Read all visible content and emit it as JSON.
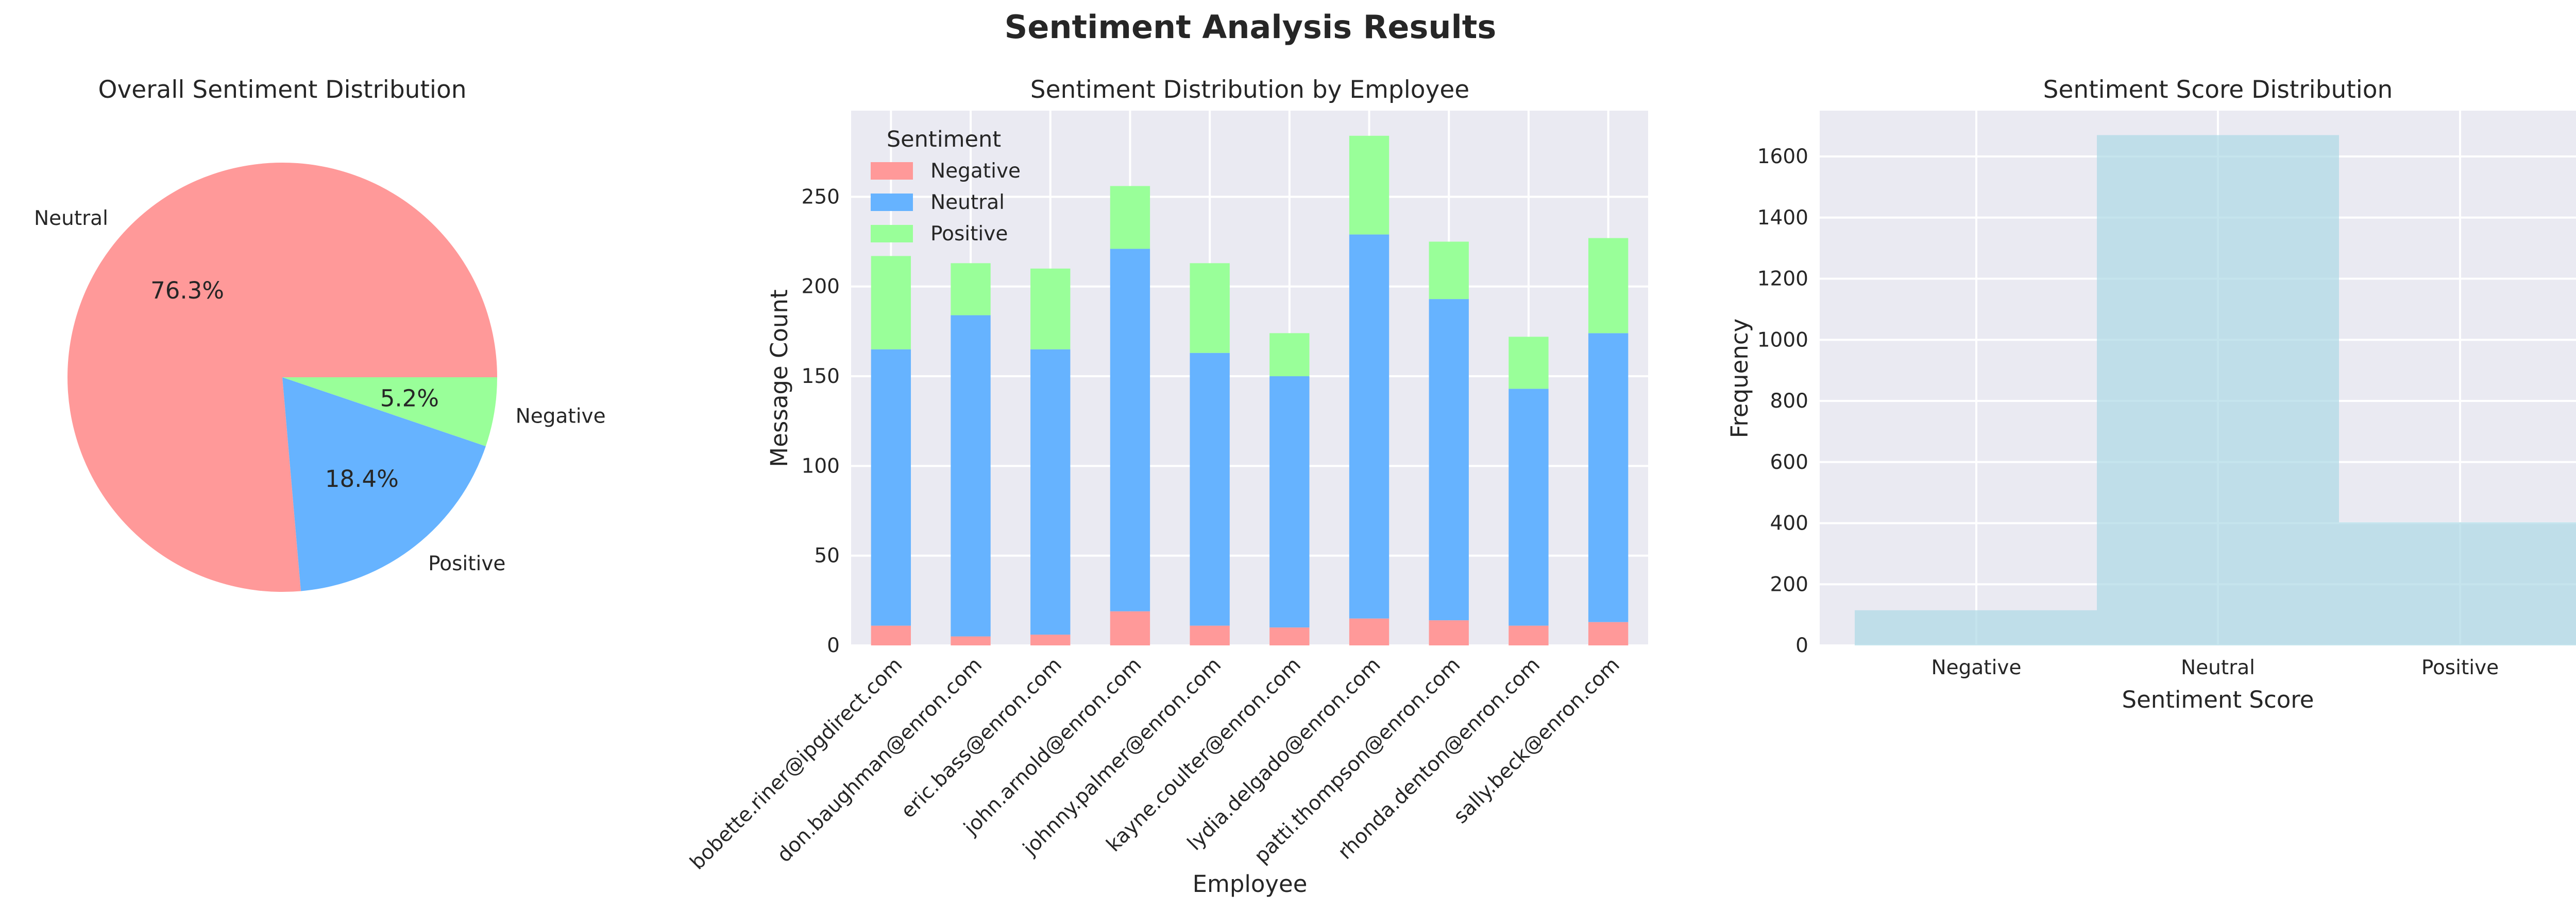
{
  "figure": {
    "suptitle": "Sentiment Analysis Results"
  },
  "colors": {
    "negative": "#ff9999",
    "neutral": "#66b3ff",
    "positive": "#99ff99",
    "histogram": "#add8e6",
    "plot_background": "#eaeaf2",
    "grid": "#ffffff"
  },
  "chart_data": [
    {
      "type": "pie",
      "title": "Overall Sentiment Distribution",
      "labels": [
        "Neutral",
        "Positive",
        "Negative"
      ],
      "values": [
        76.3,
        18.4,
        5.2
      ],
      "pct_labels": [
        "76.3%",
        "18.4%",
        "5.2%"
      ],
      "colors": [
        "#ff9999",
        "#66b3ff",
        "#99ff99"
      ]
    },
    {
      "type": "bar",
      "stacked": true,
      "title": "Sentiment Distribution by Employee",
      "xlabel": "Employee",
      "ylabel": "Message Count",
      "categories": [
        "bobette.riner@ipgdirect.com",
        "don.baughman@enron.com",
        "eric.bass@enron.com",
        "john.arnold@enron.com",
        "johnny.palmer@enron.com",
        "kayne.coulter@enron.com",
        "lydia.delgado@enron.com",
        "patti.thompson@enron.com",
        "rhonda.denton@enron.com",
        "sally.beck@enron.com"
      ],
      "series": [
        {
          "name": "Negative",
          "color": "#ff9999",
          "values": [
            11,
            5,
            6,
            19,
            11,
            10,
            15,
            14,
            11,
            13
          ]
        },
        {
          "name": "Neutral",
          "color": "#66b3ff",
          "values": [
            154,
            179,
            159,
            202,
            152,
            140,
            214,
            179,
            132,
            161
          ]
        },
        {
          "name": "Positive",
          "color": "#99ff99",
          "values": [
            52,
            29,
            45,
            35,
            50,
            24,
            55,
            32,
            29,
            53
          ]
        }
      ],
      "yticks": [
        0,
        50,
        100,
        150,
        200,
        250
      ],
      "ylim": [
        0,
        298
      ],
      "legend": {
        "title": "Sentiment",
        "placement": "top-left"
      },
      "grid": true
    },
    {
      "type": "bar",
      "title": "Sentiment Score Distribution",
      "xlabel": "Sentiment Score",
      "ylabel": "Frequency",
      "categories": [
        "Negative",
        "Neutral",
        "Positive"
      ],
      "values": [
        115,
        1670,
        403
      ],
      "yticks": [
        0,
        200,
        400,
        600,
        800,
        1000,
        1200,
        1400,
        1600
      ],
      "ylim": [
        0,
        1750
      ],
      "color": "#add8e6",
      "grid": true
    }
  ]
}
